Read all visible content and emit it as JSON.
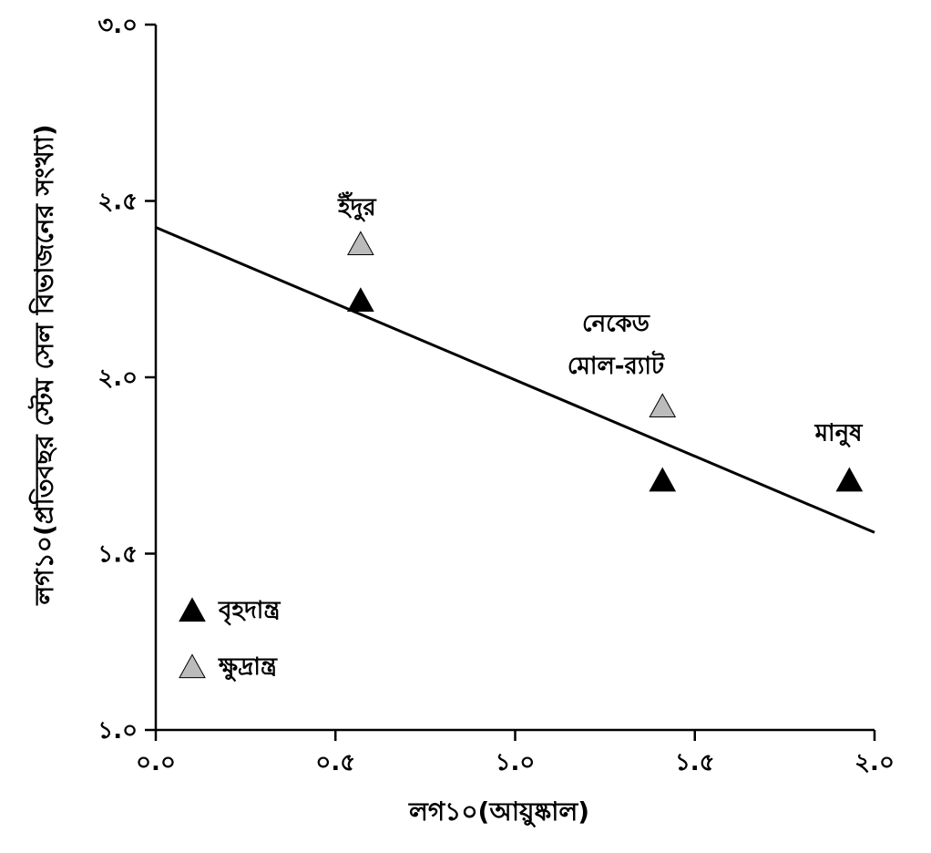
{
  "chart_data": {
    "type": "scatter",
    "xlabel": "লগ১০(আয়ুষ্কাল)",
    "ylabel": "লগ১০(প্রতিবছর স্টেম সেল বিভাজনের সংখ্যা)",
    "xlim": [
      0.0,
      2.0
    ],
    "ylim": [
      1.0,
      3.0
    ],
    "x_ticks": [
      {
        "value": 0.0,
        "label": "০.০"
      },
      {
        "value": 0.5,
        "label": "০.৫"
      },
      {
        "value": 1.0,
        "label": "১.০"
      },
      {
        "value": 1.5,
        "label": "১.৫"
      },
      {
        "value": 2.0,
        "label": "২.০"
      }
    ],
    "y_ticks": [
      {
        "value": 1.0,
        "label": "১.০"
      },
      {
        "value": 1.5,
        "label": "১.৫"
      },
      {
        "value": 2.0,
        "label": "২.০"
      },
      {
        "value": 2.5,
        "label": "২.৫"
      },
      {
        "value": 3.0,
        "label": "৩.০"
      }
    ],
    "grid": false,
    "legend_position": "bottom-left",
    "series": [
      {
        "name": "বৃহদান্ত্র",
        "marker": "triangle",
        "color": "#000000",
        "points": [
          {
            "x": 0.57,
            "y": 2.22
          },
          {
            "x": 1.41,
            "y": 1.71
          },
          {
            "x": 1.93,
            "y": 1.71
          }
        ]
      },
      {
        "name": "ক্ষুদ্রান্ত্র",
        "marker": "triangle",
        "color": "#bbbbbb",
        "points": [
          {
            "x": 0.57,
            "y": 2.38
          },
          {
            "x": 1.41,
            "y": 1.92
          }
        ]
      }
    ],
    "trendline": {
      "x": [
        0.0,
        2.0
      ],
      "y": [
        2.425,
        1.56
      ]
    },
    "annotations": [
      {
        "text": "ইঁদুর",
        "x": 0.56,
        "y": 2.46
      },
      {
        "text": "নেকেড",
        "x": 1.28,
        "y": 2.13
      },
      {
        "text": "মোল-র‍্যাট",
        "x": 1.28,
        "y": 2.01
      },
      {
        "text": "মানুষ",
        "x": 1.9,
        "y": 1.82
      }
    ]
  }
}
